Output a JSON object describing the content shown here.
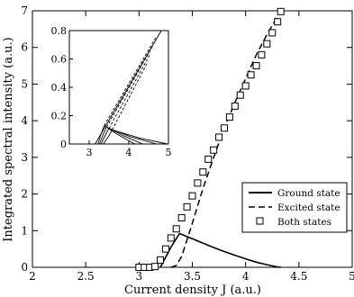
{
  "chart_data": {
    "type": "line",
    "title": "",
    "xlabel": "Current density J (a.u.)",
    "ylabel": "Integrated spectral intensity (a.u.)",
    "xlim": [
      2,
      5
    ],
    "ylim": [
      0,
      7
    ],
    "xticks": [
      "2",
      "2.5",
      "3",
      "3.5",
      "4",
      "4.5",
      "5"
    ],
    "yticks": [
      "0",
      "1",
      "2",
      "3",
      "4",
      "5",
      "6",
      "7"
    ],
    "grid": false,
    "legend_position": "bottom-right",
    "series": [
      {
        "name": "Ground state",
        "style": "solid",
        "x": [
          3.2,
          3.3,
          3.38,
          3.5,
          3.6,
          3.7,
          3.8,
          3.9,
          4.0,
          4.1,
          4.2,
          4.3,
          4.33
        ],
        "y": [
          0,
          0.55,
          0.92,
          0.78,
          0.66,
          0.54,
          0.43,
          0.33,
          0.23,
          0.14,
          0.07,
          0.01,
          0
        ]
      },
      {
        "name": "Excited state",
        "style": "dashed",
        "x": [
          3.3,
          3.35,
          3.4,
          3.45,
          3.5,
          3.6,
          3.7,
          3.8,
          3.9,
          4.0,
          4.1,
          4.2,
          4.3,
          4.33
        ],
        "y": [
          0,
          0.05,
          0.3,
          0.75,
          1.2,
          2.15,
          3.0,
          3.8,
          4.5,
          5.15,
          5.8,
          6.35,
          6.85,
          6.98
        ]
      },
      {
        "name": "Both states",
        "style": "markers",
        "x": [
          3.0,
          3.05,
          3.1,
          3.15,
          3.2,
          3.25,
          3.3,
          3.35,
          3.4,
          3.45,
          3.5,
          3.55,
          3.6,
          3.65,
          3.7,
          3.75,
          3.8,
          3.85,
          3.9,
          3.95,
          4.0,
          4.05,
          4.1,
          4.15,
          4.2,
          4.25,
          4.3,
          4.33
        ],
        "y": [
          0,
          0,
          0,
          0.02,
          0.2,
          0.5,
          0.8,
          1.05,
          1.35,
          1.65,
          1.95,
          2.3,
          2.6,
          2.95,
          3.2,
          3.55,
          3.8,
          4.1,
          4.4,
          4.7,
          4.95,
          5.25,
          5.5,
          5.8,
          6.1,
          6.4,
          6.7,
          6.98
        ]
      }
    ],
    "inset": {
      "xlim": [
        2.5,
        5
      ],
      "ylim": [
        0,
        0.8
      ],
      "xticks": [
        "3",
        "4",
        "5"
      ],
      "yticks": [
        "0",
        "0.2",
        "0.4",
        "0.6",
        "0.8"
      ],
      "lines": [
        {
          "style": "solid",
          "x": [
            3.15,
            4.82
          ],
          "y": [
            0,
            0.8
          ]
        },
        {
          "style": "solid",
          "x": [
            3.22,
            3.3,
            3.38
          ],
          "y": [
            0,
            0.07,
            0.13
          ]
        },
        {
          "style": "solid",
          "x": [
            3.26,
            3.36,
            3.44
          ],
          "y": [
            0,
            0.07,
            0.12
          ]
        },
        {
          "style": "solid",
          "x": [
            3.3,
            3.42,
            3.5
          ],
          "y": [
            0,
            0.07,
            0.11
          ]
        },
        {
          "style": "solid",
          "x": [
            3.36,
            3.5,
            3.58
          ],
          "y": [
            0,
            0.06,
            0.1
          ]
        },
        {
          "style": "solid",
          "x": [
            3.38,
            3.7,
            4.15
          ],
          "y": [
            0.13,
            0.07,
            0
          ]
        },
        {
          "style": "solid",
          "x": [
            3.44,
            3.85,
            4.35
          ],
          "y": [
            0.12,
            0.06,
            0
          ]
        },
        {
          "style": "solid",
          "x": [
            3.5,
            4.05,
            4.7
          ],
          "y": [
            0.11,
            0.05,
            0
          ]
        },
        {
          "style": "solid",
          "x": [
            3.58,
            4.3,
            4.98
          ],
          "y": [
            0.1,
            0.04,
            0
          ]
        },
        {
          "style": "dashed",
          "x": [
            3.38,
            4.7
          ],
          "y": [
            0.13,
            0.76
          ]
        },
        {
          "style": "dashed",
          "x": [
            3.44,
            4.62
          ],
          "y": [
            0.12,
            0.7
          ]
        },
        {
          "style": "dashed",
          "x": [
            3.5,
            4.55
          ],
          "y": [
            0.11,
            0.64
          ]
        },
        {
          "style": "dashed",
          "x": [
            3.58,
            4.48
          ],
          "y": [
            0.1,
            0.58
          ]
        }
      ]
    }
  }
}
